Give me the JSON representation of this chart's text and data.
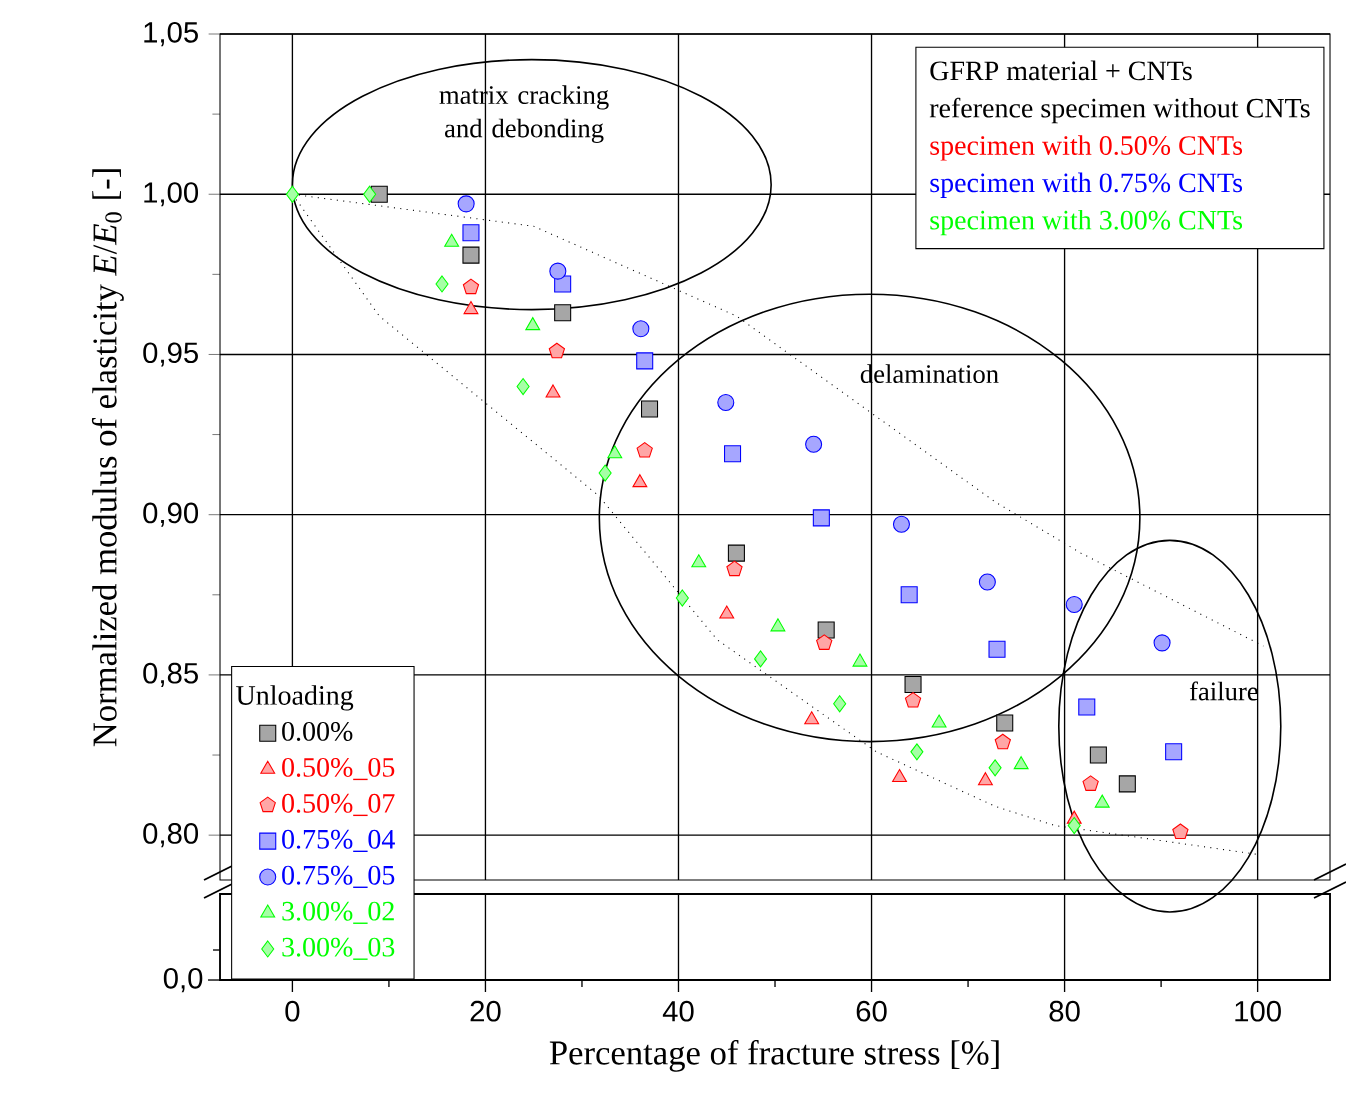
{
  "chart_data": {
    "type": "scatter",
    "xlabel": "Percentage of fracture stress [%]",
    "ylabel": "Normalized modulus of elasticity *E*/*E*$_{0}$ [-]",
    "legend_title": "Unloading",
    "legend": "bottom left",
    "grid": true,
    "xlim": [
      -7.5,
      107.5
    ],
    "xticks": [
      0,
      20,
      40,
      60,
      80,
      100
    ],
    "ylim": [
      0.786,
      1.05
    ],
    "yticks": [
      {
        "value": 0.8,
        "label": "0,80"
      },
      {
        "value": 0.85,
        "label": "0,85"
      },
      {
        "value": 0.9,
        "label": "0,90"
      },
      {
        "value": 0.95,
        "label": "0,95"
      },
      {
        "value": 1.0,
        "label": "1,00"
      },
      {
        "value": 1.05,
        "label": "1,05"
      }
    ],
    "annotations": [
      "GFRP material + CNTs",
      "reference specimen without CNTs",
      "specimen with 0.50% CNTs",
      "specimen with 0.75% CNTs",
      "specimen with 3.00% CNTs",
      "matrix cracking and debonding",
      "delamination",
      "failure",
      "0,0"
    ],
    "series": [
      {
        "name": "0.00%",
        "color": "#000000",
        "marker": "square",
        "x": [
          9,
          18.5,
          28,
          37,
          46,
          55.3,
          64.3,
          73.8,
          83.5,
          86.5
        ],
        "values": [
          1.0,
          0.981,
          0.963,
          0.933,
          0.888,
          0.864,
          0.847,
          0.835,
          0.825,
          0.816
        ]
      },
      {
        "name": "0.50%_05",
        "color": "#ff0000",
        "marker": "triangle",
        "x": [
          18.5,
          27,
          36,
          45,
          53.8,
          62.9,
          71.8,
          81
        ],
        "values": [
          0.964,
          0.938,
          0.91,
          0.869,
          0.836,
          0.818,
          0.817,
          0.805
        ]
      },
      {
        "name": "0.50%_07",
        "color": "#ff0000",
        "x": [
          18.5,
          27.4,
          36.5,
          45.8,
          55.1,
          64.3,
          73.6,
          82.7,
          92
        ],
        "values": [
          0.971,
          0.951,
          0.92,
          0.883,
          0.86,
          0.842,
          0.829,
          0.816,
          0.801
        ]
      },
      {
        "name": "0.75%_04",
        "color": "#0000ff",
        "marker": "square",
        "x": [
          18.5,
          28,
          36.5,
          45.6,
          54.8,
          63.9,
          73,
          82.3,
          91.3
        ],
        "values": [
          0.988,
          0.972,
          0.948,
          0.919,
          0.899,
          0.875,
          0.858,
          0.84,
          0.826
        ]
      },
      {
        "name": "0.75%_05",
        "color": "#0000ff",
        "marker": "circle",
        "x": [
          18,
          27.5,
          36.1,
          44.9,
          54,
          63.1,
          72,
          81,
          90.1
        ],
        "values": [
          0.997,
          0.976,
          0.958,
          0.935,
          0.922,
          0.897,
          0.879,
          0.872,
          0.86
        ]
      },
      {
        "name": "3.00%_02",
        "color": "#00ff00",
        "marker": "triangle",
        "x": [
          16.5,
          24.9,
          33.4,
          42.1,
          50.3,
          58.8,
          67,
          75.5,
          83.9
        ],
        "values": [
          0.985,
          0.959,
          0.919,
          0.885,
          0.865,
          0.854,
          0.835,
          0.822,
          0.81
        ]
      },
      {
        "name": "3.00%_03",
        "color": "#00ff00",
        "marker": "diamond",
        "x": [
          0,
          8,
          15.5,
          23.9,
          32.4,
          40.4,
          48.5,
          56.7,
          64.7,
          72.8,
          81
        ],
        "values": [
          1.0,
          1.0,
          0.972,
          0.94,
          0.913,
          0.874,
          0.855,
          0.841,
          0.826,
          0.821,
          0.803
        ]
      },
      {
        "type": "line",
        "color": "#000000",
        "line_style": "dotted",
        "marker": "none",
        "x": [
          0,
          25,
          46,
          72.8,
          81.7,
          100.6
        ],
        "values": [
          1.0,
          0.99,
          0.962,
          0.904,
          0.888,
          0.859
        ]
      },
      {
        "type": "line",
        "color": "#000000",
        "line_style": "dotted",
        "marker": "none",
        "x": [
          0,
          9,
          31.7,
          44,
          60.5,
          72.8,
          79,
          100
        ],
        "values": [
          1.0,
          0.962,
          0.906,
          0.861,
          0.826,
          0.809,
          0.803,
          0.794
        ]
      }
    ]
  }
}
